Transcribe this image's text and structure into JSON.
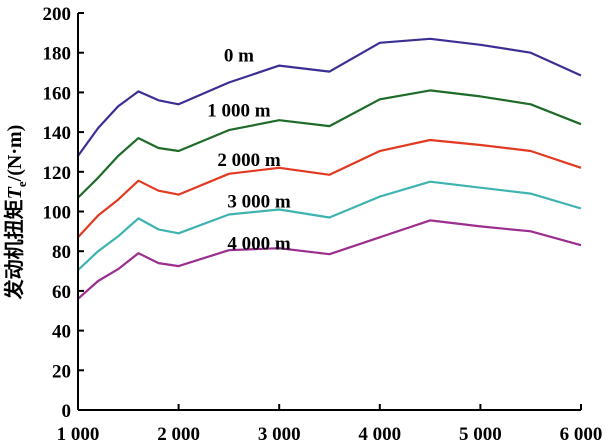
{
  "chart_data": {
    "type": "line",
    "ylabel": {
      "cn": "发动机扭矩",
      "symbol": "T",
      "subscript": "e",
      "unit": "/(N·m)"
    },
    "xlim": [
      1000,
      6000
    ],
    "ylim": [
      0,
      200
    ],
    "x_ticks": [
      {
        "value": 1000,
        "label": "1 000"
      },
      {
        "value": 2000,
        "label": "2 000"
      },
      {
        "value": 3000,
        "label": "3 000"
      },
      {
        "value": 4000,
        "label": "4 000"
      },
      {
        "value": 5000,
        "label": "5 000"
      },
      {
        "value": 6000,
        "label": "6 000"
      }
    ],
    "y_ticks": [
      {
        "value": 0,
        "label": "0"
      },
      {
        "value": 20,
        "label": "20"
      },
      {
        "value": 40,
        "label": "40"
      },
      {
        "value": 60,
        "label": "60"
      },
      {
        "value": 80,
        "label": "80"
      },
      {
        "value": 100,
        "label": "100"
      },
      {
        "value": 120,
        "label": "120"
      },
      {
        "value": 140,
        "label": "140"
      },
      {
        "value": 160,
        "label": "160"
      },
      {
        "value": 180,
        "label": "180"
      },
      {
        "value": 200,
        "label": "200"
      }
    ],
    "grid": false,
    "series": [
      {
        "name": "0 m",
        "color": "#3b2f93",
        "label_at": [
          2600,
          179
        ],
        "points": [
          [
            1000,
            128
          ],
          [
            1200,
            142
          ],
          [
            1400,
            153
          ],
          [
            1600,
            160.5
          ],
          [
            1800,
            156
          ],
          [
            2000,
            154
          ],
          [
            2500,
            165
          ],
          [
            3000,
            173.5
          ],
          [
            3500,
            170.5
          ],
          [
            4000,
            185
          ],
          [
            4500,
            187
          ],
          [
            5000,
            184
          ],
          [
            5500,
            180
          ],
          [
            6000,
            168.5
          ]
        ]
      },
      {
        "name": "1 000 m",
        "color": "#1f6b2a",
        "label_at": [
          2600,
          151.5
        ],
        "points": [
          [
            1000,
            107
          ],
          [
            1200,
            117
          ],
          [
            1400,
            128
          ],
          [
            1600,
            137
          ],
          [
            1800,
            132
          ],
          [
            2000,
            130.5
          ],
          [
            2500,
            141
          ],
          [
            3000,
            146
          ],
          [
            3500,
            143
          ],
          [
            4000,
            156.5
          ],
          [
            4500,
            161
          ],
          [
            5000,
            158
          ],
          [
            5500,
            154
          ],
          [
            6000,
            144
          ]
        ]
      },
      {
        "name": "2 000 m",
        "color": "#e23a22",
        "label_at": [
          2700,
          126.5
        ],
        "points": [
          [
            1000,
            87
          ],
          [
            1200,
            98
          ],
          [
            1400,
            106
          ],
          [
            1600,
            115.5
          ],
          [
            1800,
            110.5
          ],
          [
            2000,
            108.5
          ],
          [
            2500,
            119
          ],
          [
            3000,
            122
          ],
          [
            3500,
            118.5
          ],
          [
            4000,
            130.5
          ],
          [
            4500,
            136
          ],
          [
            5000,
            133.5
          ],
          [
            5500,
            130.5
          ],
          [
            6000,
            122
          ]
        ]
      },
      {
        "name": "3 000 m",
        "color": "#3fb3b0",
        "label_at": [
          2800,
          105.5
        ],
        "points": [
          [
            1000,
            70.5
          ],
          [
            1200,
            80
          ],
          [
            1400,
            87.5
          ],
          [
            1600,
            96.5
          ],
          [
            1800,
            91
          ],
          [
            2000,
            89
          ],
          [
            2500,
            98.5
          ],
          [
            3000,
            101
          ],
          [
            3500,
            97
          ],
          [
            4000,
            107.5
          ],
          [
            4500,
            115
          ],
          [
            5000,
            112
          ],
          [
            5500,
            109
          ],
          [
            6000,
            101.5
          ]
        ]
      },
      {
        "name": "4 000 m",
        "color": "#9b2e8e",
        "label_at": [
          2800,
          84.5
        ],
        "points": [
          [
            1000,
            56
          ],
          [
            1200,
            65
          ],
          [
            1400,
            71
          ],
          [
            1600,
            79
          ],
          [
            1800,
            74
          ],
          [
            2000,
            72.5
          ],
          [
            2500,
            80.5
          ],
          [
            3000,
            81.5
          ],
          [
            3500,
            78.5
          ],
          [
            4000,
            87
          ],
          [
            4500,
            95.5
          ],
          [
            5000,
            92.5
          ],
          [
            5500,
            90
          ],
          [
            6000,
            83
          ]
        ]
      }
    ]
  }
}
